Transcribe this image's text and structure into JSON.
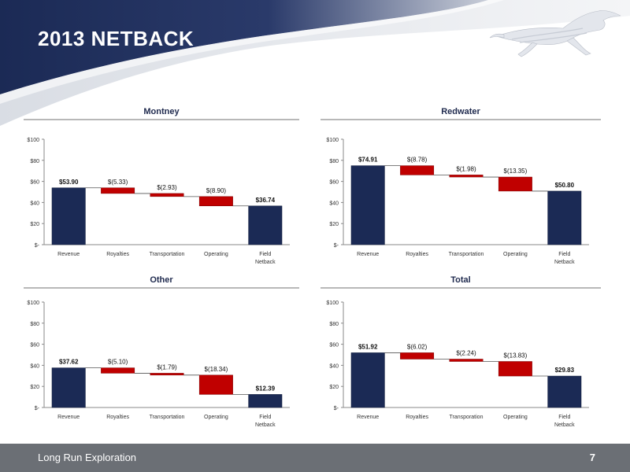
{
  "slide": {
    "title": "2013 NETBACK",
    "company": "Long Run Exploration",
    "page_number": "7"
  },
  "colors": {
    "total_bar": "#1b2a55",
    "deduction_bar": "#c00000",
    "header_navy": "#1b2a55",
    "footer_gray": "#6b6f75"
  },
  "icons": {
    "logo": "horse-logo-icon"
  },
  "chart_data": [
    {
      "type": "waterfall",
      "title": "Montney",
      "categories": [
        "Revenue",
        "Royalties",
        "Transportation",
        "Operating",
        "Field|Netback"
      ],
      "values": [
        53.9,
        -5.33,
        -2.93,
        -8.9,
        36.74
      ],
      "labels": [
        "$53.90",
        "$(5.33)",
        "$(2.93)",
        "$(8.90)",
        "$36.74"
      ],
      "ylim": [
        0,
        100
      ],
      "yticks": [
        0,
        20,
        40,
        60,
        80,
        100
      ],
      "ytick_labels": [
        "$-",
        "$20",
        "$40",
        "$60",
        "$80",
        "$100"
      ]
    },
    {
      "type": "waterfall",
      "title": "Redwater",
      "categories": [
        "Revenue",
        "Royalties",
        "Transportation",
        "Operating",
        "Field|Netback"
      ],
      "values": [
        74.91,
        -8.78,
        -1.98,
        -13.35,
        50.8
      ],
      "labels": [
        "$74.91",
        "$(8.78)",
        "$(1.98)",
        "$(13.35)",
        "$50.80"
      ],
      "ylim": [
        0,
        100
      ],
      "yticks": [
        0,
        20,
        40,
        60,
        80,
        100
      ],
      "ytick_labels": [
        "$-",
        "$20",
        "$40",
        "$60",
        "$80",
        "$100"
      ]
    },
    {
      "type": "waterfall",
      "title": "Other",
      "categories": [
        "Revenue",
        "Royalties",
        "Transportation",
        "Operating",
        "Field|Netback"
      ],
      "values": [
        37.62,
        -5.1,
        -1.79,
        -18.34,
        12.39
      ],
      "labels": [
        "$37.62",
        "$(5.10)",
        "$(1.79)",
        "$(18.34)",
        "$12.39"
      ],
      "ylim": [
        0,
        100
      ],
      "yticks": [
        0,
        20,
        40,
        60,
        80,
        100
      ],
      "ytick_labels": [
        "$-",
        "$20",
        "$40",
        "$60",
        "$80",
        "$100"
      ]
    },
    {
      "type": "waterfall",
      "title": "Total",
      "categories": [
        "Revenue",
        "Royalties",
        "Transporation",
        "Operating",
        "Field|Netback"
      ],
      "values": [
        51.92,
        -6.02,
        -2.24,
        -13.83,
        29.83
      ],
      "labels": [
        "$51.92",
        "$(6.02)",
        "$(2.24)",
        "$(13.83)",
        "$29.83"
      ],
      "ylim": [
        0,
        100
      ],
      "yticks": [
        0,
        20,
        40,
        60,
        80,
        100
      ],
      "ytick_labels": [
        "$-",
        "$20",
        "$40",
        "$60",
        "$80",
        "$100"
      ]
    }
  ]
}
